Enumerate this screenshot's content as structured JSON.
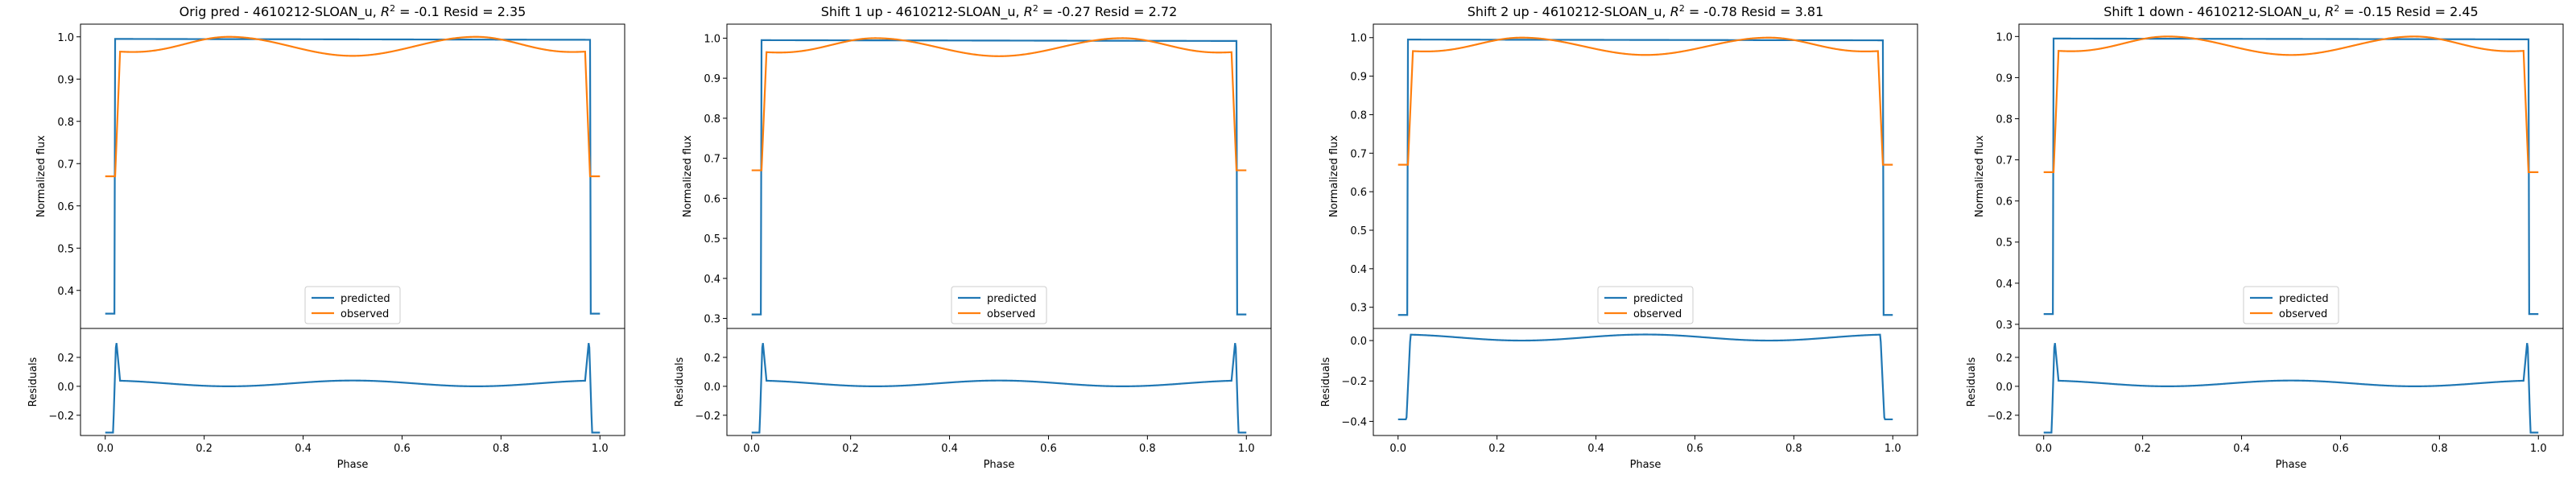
{
  "figure": {
    "background": "#ffffff"
  },
  "colors": {
    "predicted": "#1f77b4",
    "observed": "#ff7f0e",
    "axis": "#000000"
  },
  "chart_data": [
    {
      "type": "line",
      "title": "Orig pred - 4610212-SLOAN_u, $R^2$ = -0.1 Resid = 2.35",
      "title_parts": {
        "pre": "Orig pred - 4610212-SLOAN_u, ",
        "r2": "R",
        "sup": "2",
        "post": " = -0.1 Resid = 2.35"
      },
      "ylabel_top": "Normalized flux",
      "ylabel_bottom": "Residuals",
      "xlabel": "Phase",
      "legend": [
        "predicted",
        "observed"
      ],
      "legend_position": "lower center",
      "xlim": [
        -0.05,
        1.05
      ],
      "xticks": [
        0.0,
        0.2,
        0.4,
        0.6,
        0.8,
        1.0
      ],
      "xtick_labels": [
        "0.0",
        "0.2",
        "0.4",
        "0.6",
        "0.8",
        "1.0"
      ],
      "top": {
        "ylim": [
          0.31,
          1.03
        ],
        "yticks": [
          0.4,
          0.5,
          0.6,
          0.7,
          0.8,
          0.9,
          1.0
        ],
        "ytick_labels": [
          "0.4",
          "0.5",
          "0.6",
          "0.7",
          "0.8",
          "0.9",
          "1.0"
        ],
        "predicted": {
          "low": 0.345,
          "high": 0.995,
          "end": 0.993
        },
        "observed": {
          "low": 0.67,
          "edge": 0.965,
          "peak": 1.0,
          "mid": 0.955
        }
      },
      "bottom": {
        "ylim": [
          -0.34,
          0.4
        ],
        "yticks": [
          -0.2,
          0.0,
          0.2
        ],
        "ytick_labels": [
          "−0.2",
          "0.0",
          "0.2"
        ],
        "residuals": {
          "out": -0.32,
          "edge_peak": 0.33,
          "edge": 0.04,
          "quad": 0.0,
          "mid": 0.04
        }
      }
    },
    {
      "type": "line",
      "title": "Shift 1 up - 4610212-SLOAN_u, $R^2$ = -0.27 Resid = 2.72",
      "title_parts": {
        "pre": "Shift 1 up - 4610212-SLOAN_u, ",
        "r2": "R",
        "sup": "2",
        "post": " = -0.27 Resid = 2.72"
      },
      "ylabel_top": "Normalized flux",
      "ylabel_bottom": "Residuals",
      "xlabel": "Phase",
      "legend": [
        "predicted",
        "observed"
      ],
      "legend_position": "lower center",
      "xlim": [
        -0.05,
        1.05
      ],
      "xticks": [
        0.0,
        0.2,
        0.4,
        0.6,
        0.8,
        1.0
      ],
      "xtick_labels": [
        "0.0",
        "0.2",
        "0.4",
        "0.6",
        "0.8",
        "1.0"
      ],
      "top": {
        "ylim": [
          0.275,
          1.035
        ],
        "yticks": [
          0.3,
          0.4,
          0.5,
          0.6,
          0.7,
          0.8,
          0.9,
          1.0
        ],
        "ytick_labels": [
          "0.3",
          "0.4",
          "0.5",
          "0.6",
          "0.7",
          "0.8",
          "0.9",
          "1.0"
        ],
        "predicted": {
          "low": 0.31,
          "high": 0.995,
          "end": 0.993
        },
        "observed": {
          "low": 0.67,
          "edge": 0.965,
          "peak": 1.0,
          "mid": 0.955
        }
      },
      "bottom": {
        "ylim": [
          -0.34,
          0.4
        ],
        "yticks": [
          -0.2,
          0.0,
          0.2
        ],
        "ytick_labels": [
          "−0.2",
          "0.0",
          "0.2"
        ],
        "residuals": {
          "out": -0.32,
          "edge_peak": 0.33,
          "edge": 0.04,
          "quad": 0.0,
          "mid": 0.04
        }
      }
    },
    {
      "type": "line",
      "title": "Shift 2 up - 4610212-SLOAN_u, $R^2$ = -0.78 Resid = 3.81",
      "title_parts": {
        "pre": "Shift 2 up - 4610212-SLOAN_u, ",
        "r2": "R",
        "sup": "2",
        "post": " = -0.78 Resid = 3.81"
      },
      "ylabel_top": "Normalized flux",
      "ylabel_bottom": "Residuals",
      "xlabel": "Phase",
      "legend": [
        "predicted",
        "observed"
      ],
      "legend_position": "lower center",
      "xlim": [
        -0.05,
        1.05
      ],
      "xticks": [
        0.0,
        0.2,
        0.4,
        0.6,
        0.8,
        1.0
      ],
      "xtick_labels": [
        "0.0",
        "0.2",
        "0.4",
        "0.6",
        "0.8",
        "1.0"
      ],
      "top": {
        "ylim": [
          0.245,
          1.035
        ],
        "yticks": [
          0.3,
          0.4,
          0.5,
          0.6,
          0.7,
          0.8,
          0.9,
          1.0
        ],
        "ytick_labels": [
          "0.3",
          "0.4",
          "0.5",
          "0.6",
          "0.7",
          "0.8",
          "0.9",
          "1.0"
        ],
        "predicted": {
          "low": 0.28,
          "high": 0.995,
          "end": 0.993
        },
        "observed": {
          "low": 0.67,
          "edge": 0.965,
          "peak": 1.0,
          "mid": 0.955
        }
      },
      "bottom": {
        "ylim": [
          -0.47,
          0.06
        ],
        "yticks": [
          -0.4,
          -0.2,
          0.0
        ],
        "ytick_labels": [
          "−0.4",
          "−0.2",
          "0.0"
        ],
        "residuals": {
          "out": -0.39,
          "dip": -0.44,
          "edge": 0.03,
          "quad": 0.0,
          "mid": 0.03
        }
      }
    },
    {
      "type": "line",
      "title": "Shift 1 down - 4610212-SLOAN_u, $R^2$ = -0.15 Resid = 2.45",
      "title_parts": {
        "pre": "Shift 1 down - 4610212-SLOAN_u, ",
        "r2": "R",
        "sup": "2",
        "post": " = -0.15 Resid = 2.45"
      },
      "ylabel_top": "Normalized flux",
      "ylabel_bottom": "Residuals",
      "xlabel": "Phase",
      "legend": [
        "predicted",
        "observed"
      ],
      "legend_position": "lower center",
      "xlim": [
        -0.05,
        1.05
      ],
      "xticks": [
        0.0,
        0.2,
        0.4,
        0.6,
        0.8,
        1.0
      ],
      "xtick_labels": [
        "0.0",
        "0.2",
        "0.4",
        "0.6",
        "0.8",
        "1.0"
      ],
      "top": {
        "ylim": [
          0.29,
          1.03
        ],
        "yticks": [
          0.3,
          0.4,
          0.5,
          0.6,
          0.7,
          0.8,
          0.9,
          1.0
        ],
        "ytick_labels": [
          "0.3",
          "0.4",
          "0.5",
          "0.6",
          "0.7",
          "0.8",
          "0.9",
          "1.0"
        ],
        "predicted": {
          "low": 0.325,
          "high": 0.995,
          "end": 0.993
        },
        "observed": {
          "low": 0.67,
          "edge": 0.965,
          "peak": 1.0,
          "mid": 0.955
        }
      },
      "bottom": {
        "ylim": [
          -0.34,
          0.4
        ],
        "yticks": [
          -0.2,
          0.0,
          0.2
        ],
        "ytick_labels": [
          "−0.2",
          "0.0",
          "0.2"
        ],
        "residuals": {
          "out": -0.32,
          "edge_peak": 0.33,
          "edge": 0.04,
          "quad": 0.0,
          "mid": 0.04
        }
      }
    }
  ]
}
